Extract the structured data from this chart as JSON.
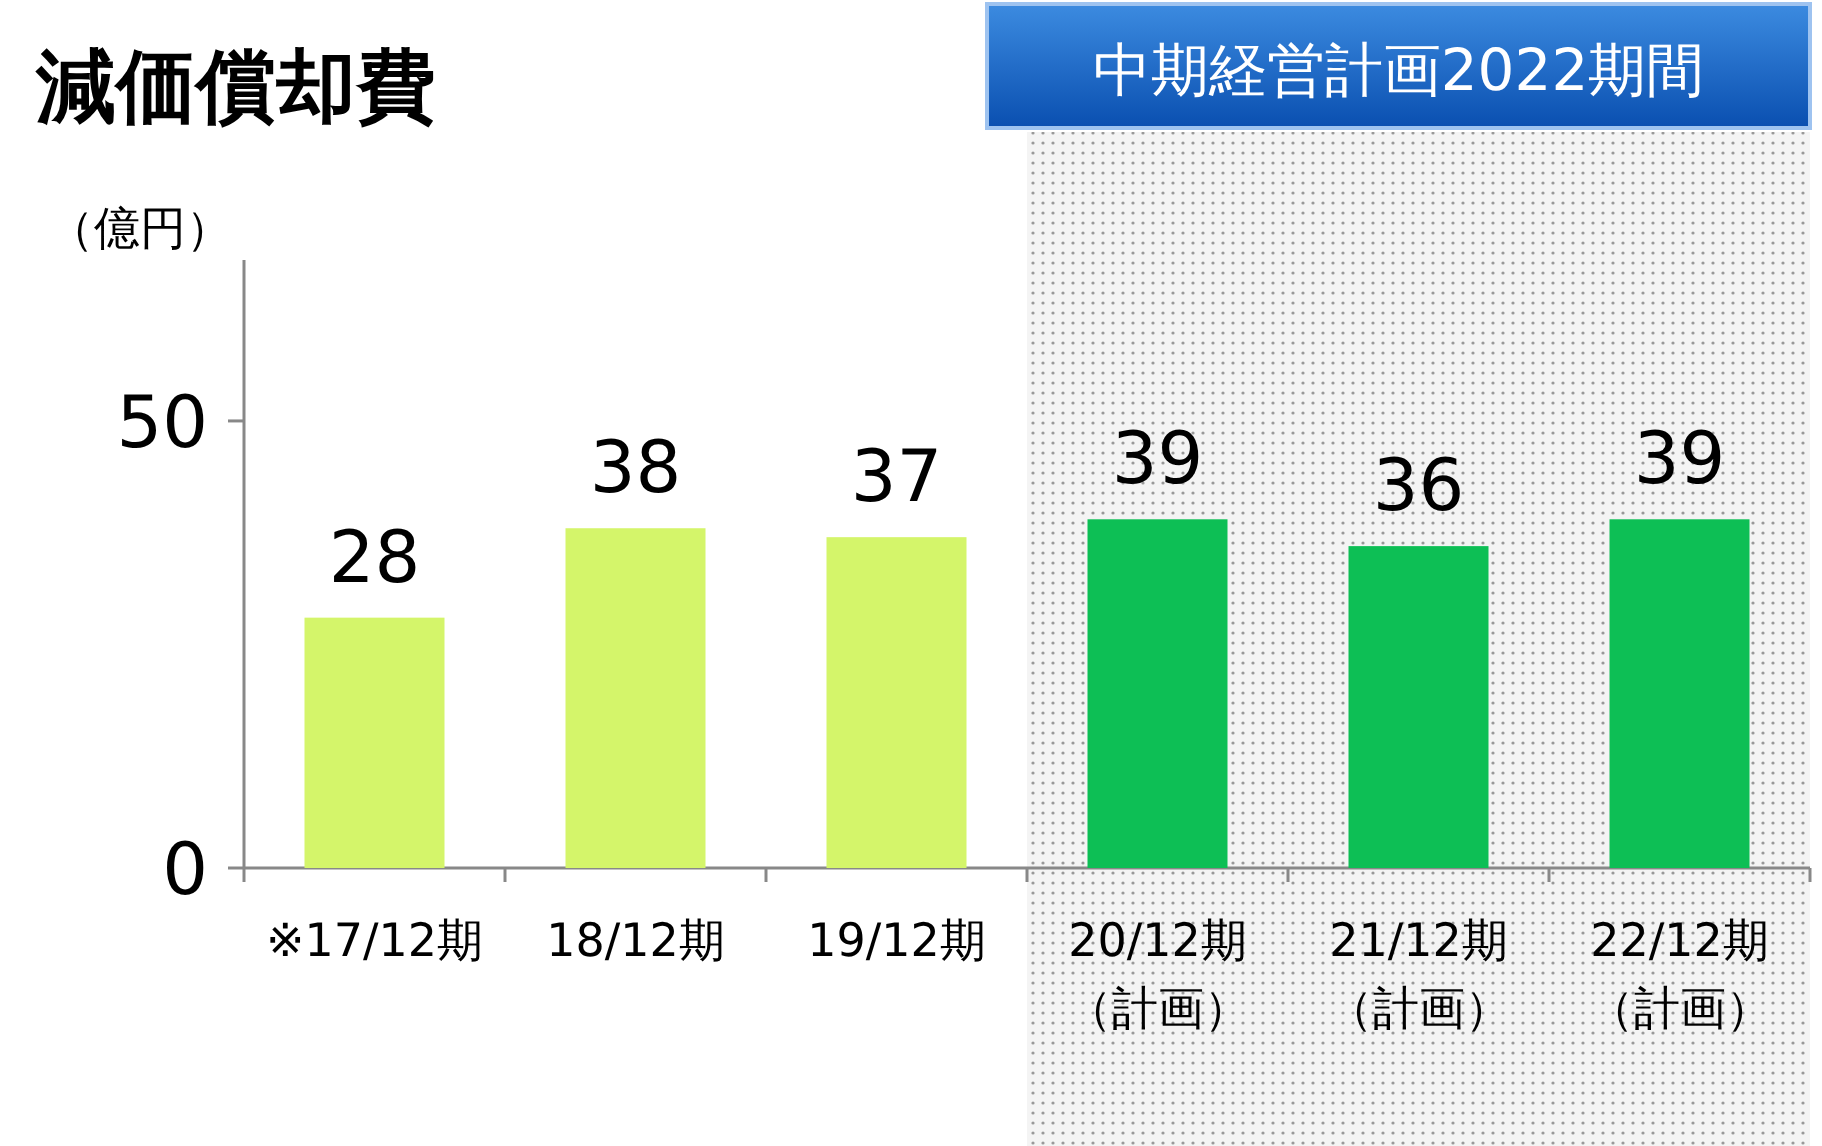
{
  "chart_data": {
    "type": "bar",
    "title": "減価償却費",
    "ylabel": "（億円）",
    "categories": [
      "※17/12期",
      "18/12期",
      "19/12期",
      "20/12期（計画）",
      "21/12期（計画）",
      "22/12期（計画）"
    ],
    "values": [
      28,
      38,
      37,
      39,
      36,
      39
    ],
    "colors": [
      "#d4f56a",
      "#d4f56a",
      "#d4f56a",
      "#0dbf55",
      "#0dbf55",
      "#0dbf55"
    ],
    "ylim": [
      0,
      68
    ],
    "yticks": [
      0,
      50
    ],
    "data_labels": true,
    "bands": [
      {
        "axis": "x",
        "from": "20/12期（計画）",
        "to": "22/12期（計画）",
        "label": "中期経営計画2022期間"
      }
    ]
  }
}
